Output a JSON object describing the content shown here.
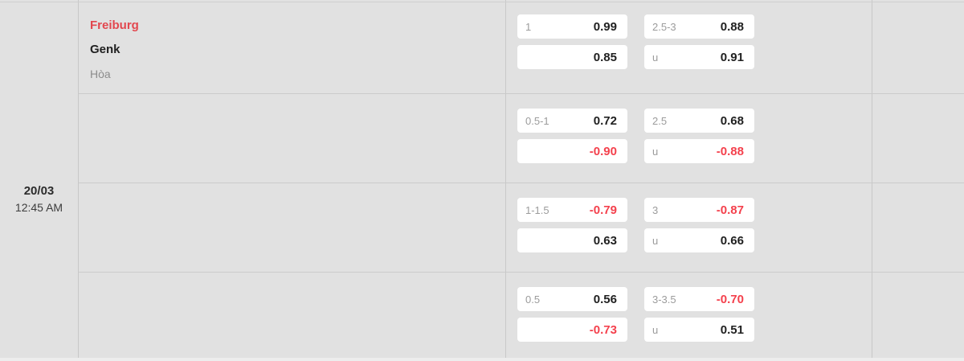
{
  "match": {
    "date": "20/03",
    "time": "12:45 AM",
    "home_team": "Freiburg",
    "away_team": "Genk",
    "draw_label": "Hòa"
  },
  "odds_rows": [
    {
      "handicap": {
        "line": "1",
        "home": "0.99",
        "away": "0.85"
      },
      "total": {
        "line": "2.5-3",
        "over": "0.88",
        "under_label": "u",
        "under": "0.91"
      }
    },
    {
      "handicap": {
        "line": "0.5-1",
        "home": "0.72",
        "away": "-0.90"
      },
      "total": {
        "line": "2.5",
        "over": "0.68",
        "under_label": "u",
        "under": "-0.88"
      }
    },
    {
      "handicap": {
        "line": "1-1.5",
        "home": "-0.79",
        "away": "0.63"
      },
      "total": {
        "line": "3",
        "over": "-0.87",
        "under_label": "u",
        "under": "0.66"
      }
    },
    {
      "handicap": {
        "line": "0.5",
        "home": "0.56",
        "away": "-0.73"
      },
      "total": {
        "line": "3-3.5",
        "over": "-0.70",
        "under_label": "u",
        "under": "0.51"
      }
    }
  ],
  "colors": {
    "accent_red": "#e2474e",
    "negative_red": "#f4414d",
    "label_gray": "#9c9c9c",
    "value_black": "#212121",
    "cell_bg": "#e1e1e1",
    "border": "#c8c8c8",
    "box_bg": "#ffffff",
    "page_bg": "#ededed"
  }
}
